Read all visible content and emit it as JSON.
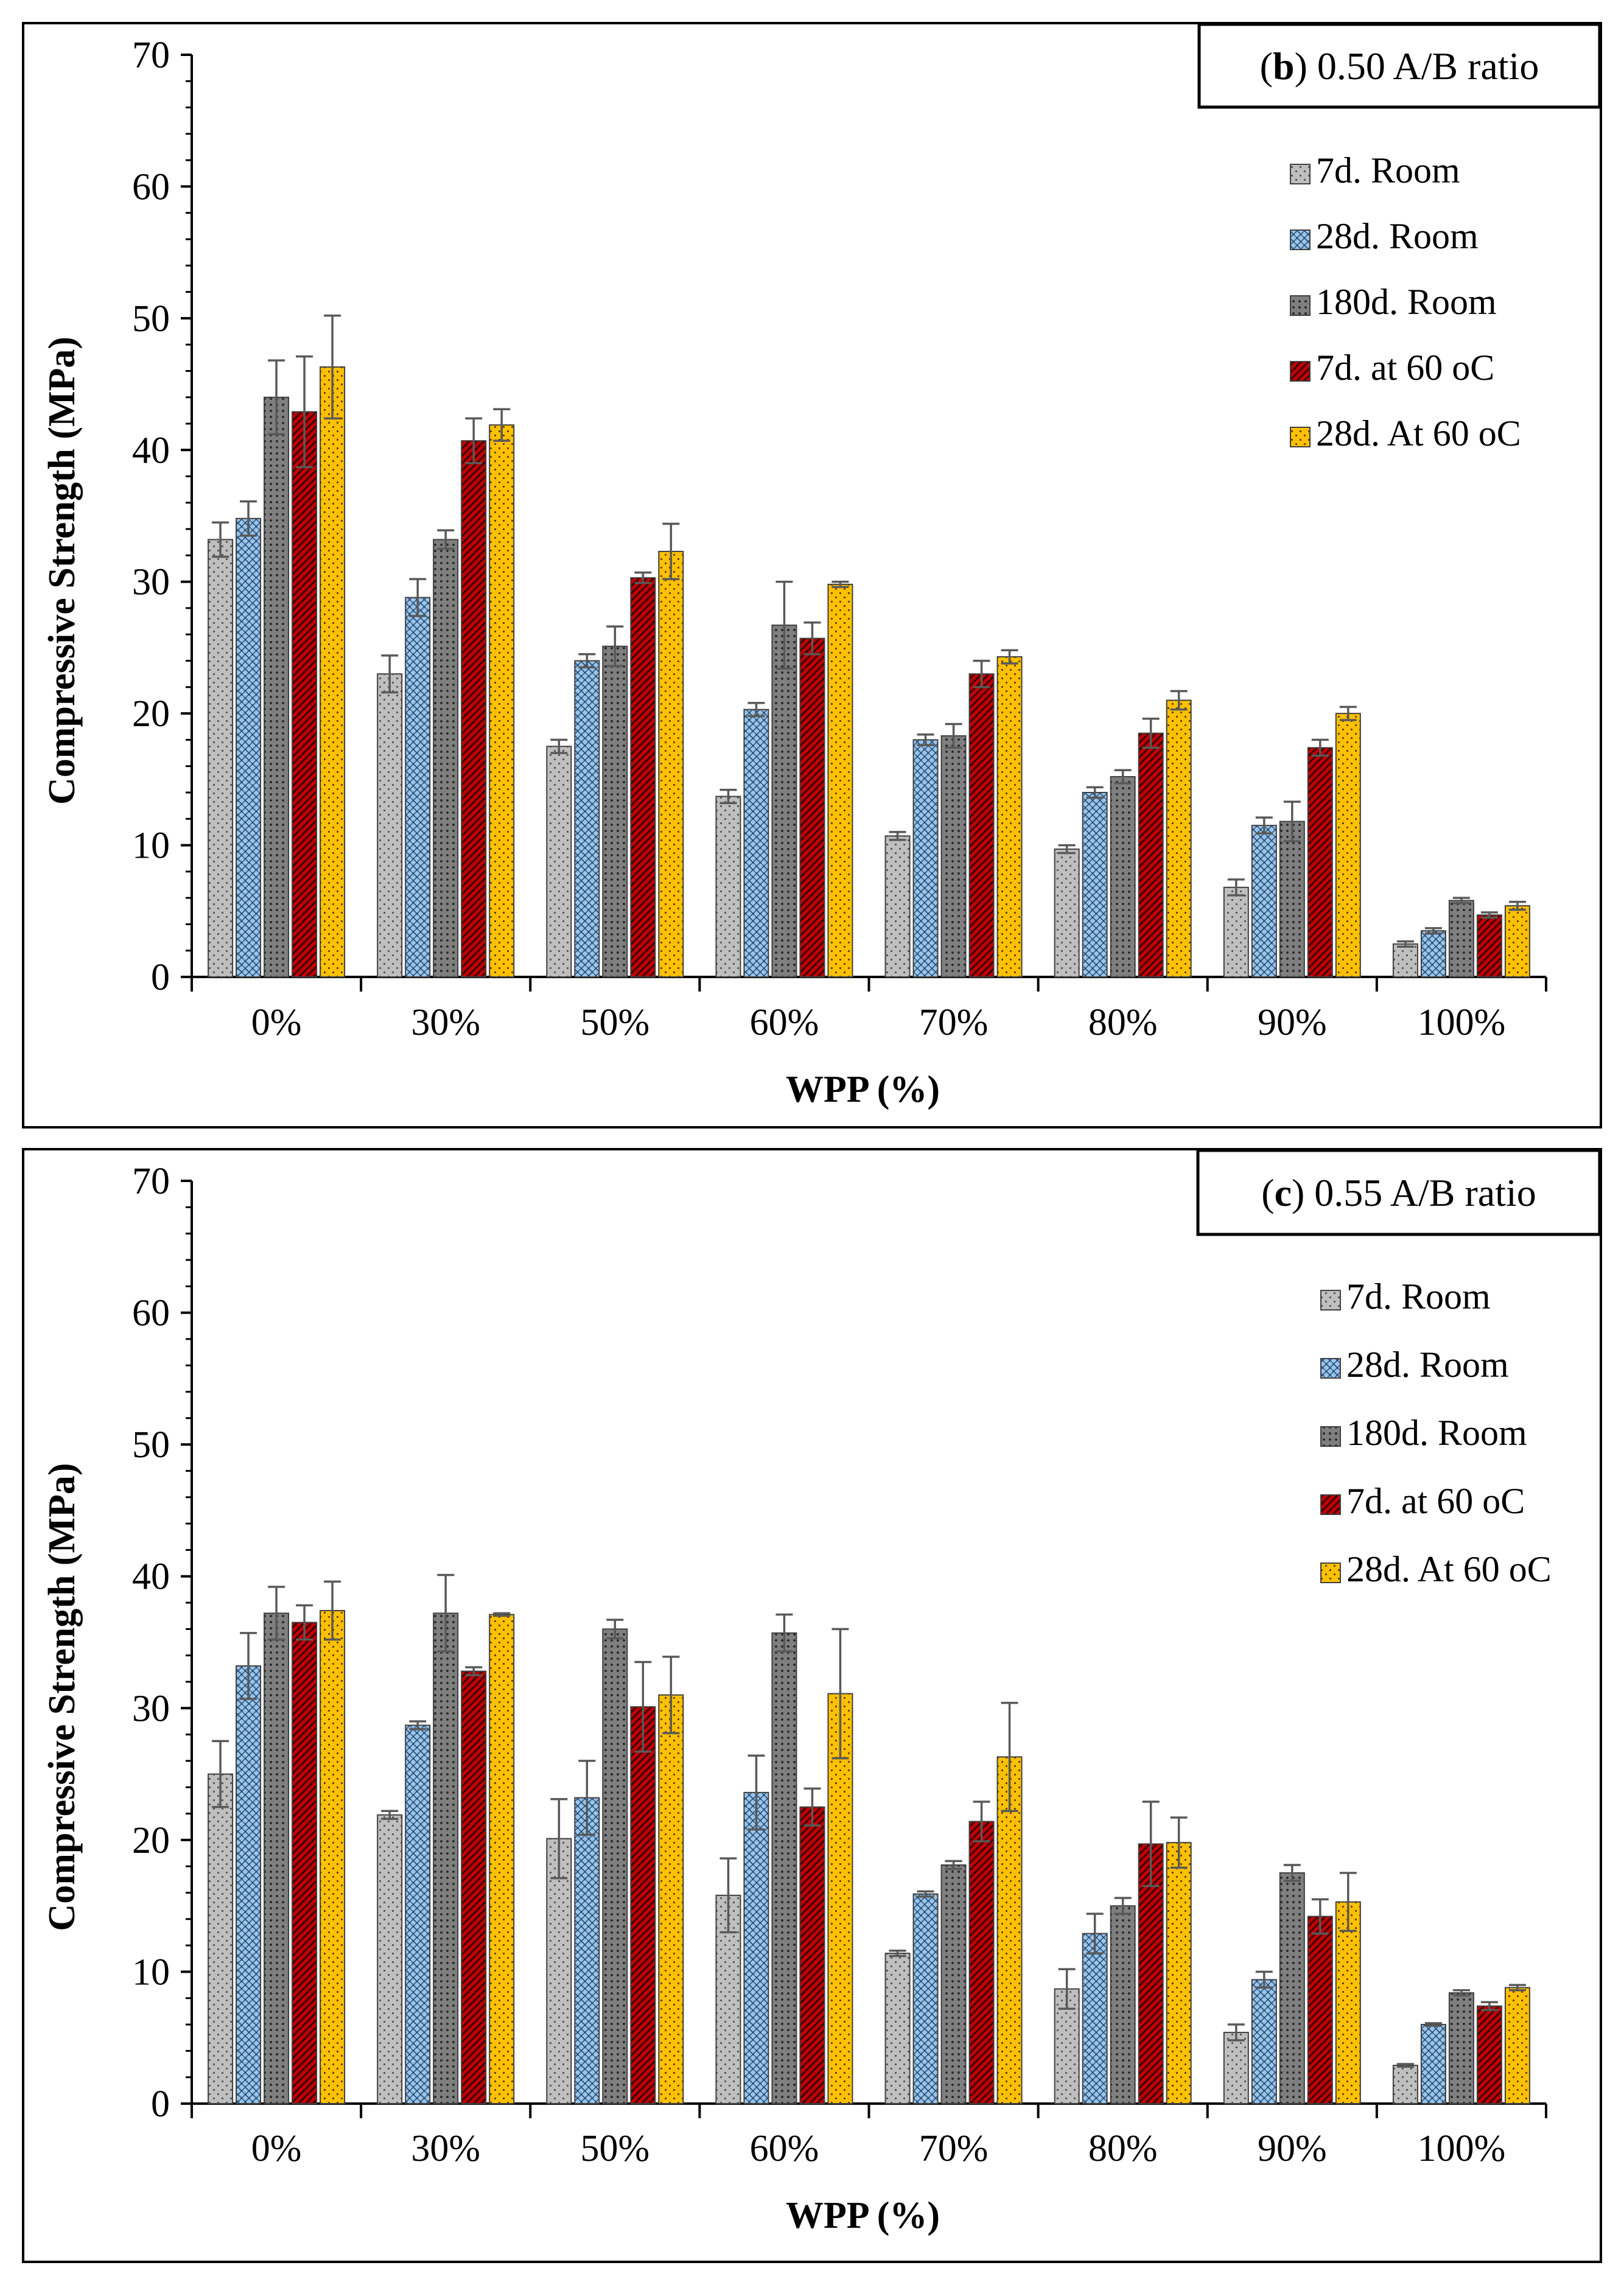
{
  "colors": {
    "7d. Room": "#bfbfbf",
    "28d. Room": "#9dc3e6",
    "180d. Room": "#7f7f7f",
    "7d. at 60 oC": "#c00000",
    "28d. At 60 oC": "#ffc000"
  },
  "chart_data": [
    {
      "type": "bar",
      "panel_label": "b",
      "title": "0.50 A/B ratio",
      "xlabel": "WPP (%)",
      "ylabel": "Compressive Strength (MPa)",
      "ylim": [
        0,
        70
      ],
      "yticks": [
        "0",
        "10",
        "20",
        "30",
        "40",
        "50",
        "60",
        "70"
      ],
      "legend_position": "top-right",
      "categories": [
        "0%",
        "30%",
        "50%",
        "60%",
        "70%",
        "80%",
        "90%",
        "100%"
      ],
      "series": [
        {
          "name": "7d. Room",
          "values": [
            33.2,
            23.0,
            17.5,
            13.7,
            10.7,
            9.7,
            6.8,
            2.5
          ],
          "errors": [
            1.3,
            1.4,
            0.5,
            0.5,
            0.3,
            0.3,
            0.6,
            0.2
          ]
        },
        {
          "name": "28d. Room",
          "values": [
            34.8,
            28.8,
            24.0,
            20.3,
            18.0,
            14.0,
            11.5,
            3.5
          ],
          "errors": [
            1.3,
            1.4,
            0.5,
            0.5,
            0.4,
            0.4,
            0.6,
            0.2
          ]
        },
        {
          "name": "180d. Room",
          "values": [
            44.0,
            33.2,
            25.1,
            26.7,
            18.3,
            15.2,
            11.8,
            5.8
          ],
          "errors": [
            2.8,
            0.7,
            1.5,
            3.3,
            0.9,
            0.5,
            1.5,
            0.2
          ]
        },
        {
          "name": "7d. at 60 oC",
          "values": [
            42.9,
            40.7,
            30.3,
            25.7,
            23.0,
            18.5,
            17.4,
            4.7
          ],
          "errors": [
            4.2,
            1.7,
            0.4,
            1.2,
            1.0,
            1.1,
            0.6,
            0.2
          ]
        },
        {
          "name": "28d. At 60 oC",
          "values": [
            46.3,
            41.9,
            32.3,
            29.8,
            24.3,
            21.0,
            20.0,
            5.4
          ],
          "errors": [
            3.9,
            1.2,
            2.1,
            0.2,
            0.5,
            0.7,
            0.5,
            0.3
          ]
        }
      ]
    },
    {
      "type": "bar",
      "panel_label": "c",
      "title": "0.55 A/B ratio",
      "xlabel": "WPP (%)",
      "ylabel": "Compressive Strength (MPa)",
      "ylim": [
        0,
        70
      ],
      "yticks": [
        "0",
        "10",
        "20",
        "30",
        "40",
        "50",
        "60",
        "70"
      ],
      "legend_position": "top-right",
      "categories": [
        "0%",
        "30%",
        "50%",
        "60%",
        "70%",
        "80%",
        "90%",
        "100%"
      ],
      "series": [
        {
          "name": "7d. Room",
          "values": [
            25.0,
            21.9,
            20.1,
            15.8,
            11.4,
            8.7,
            5.4,
            2.9
          ],
          "errors": [
            2.5,
            0.3,
            3.0,
            2.8,
            0.2,
            1.5,
            0.6,
            0.1
          ]
        },
        {
          "name": "28d. Room",
          "values": [
            33.2,
            28.7,
            23.2,
            23.6,
            15.9,
            12.9,
            9.4,
            6.0
          ],
          "errors": [
            2.5,
            0.3,
            2.8,
            2.8,
            0.2,
            1.5,
            0.6,
            0.1
          ]
        },
        {
          "name": "180d. Room",
          "values": [
            37.2,
            37.2,
            36.0,
            35.7,
            18.1,
            15.0,
            17.5,
            8.4
          ],
          "errors": [
            2.0,
            2.9,
            0.7,
            1.4,
            0.3,
            0.6,
            0.6,
            0.2
          ]
        },
        {
          "name": "7d. at 60 oC",
          "values": [
            36.5,
            32.8,
            30.1,
            22.5,
            21.4,
            19.7,
            14.2,
            7.4
          ],
          "errors": [
            1.3,
            0.3,
            3.4,
            1.4,
            1.5,
            3.2,
            1.3,
            0.3
          ]
        },
        {
          "name": "28d. At 60 oC",
          "values": [
            37.4,
            37.1,
            31.0,
            31.1,
            26.3,
            19.8,
            15.3,
            8.8
          ],
          "errors": [
            2.2,
            0.1,
            2.9,
            4.9,
            4.1,
            1.9,
            2.2,
            0.2
          ]
        }
      ]
    }
  ]
}
